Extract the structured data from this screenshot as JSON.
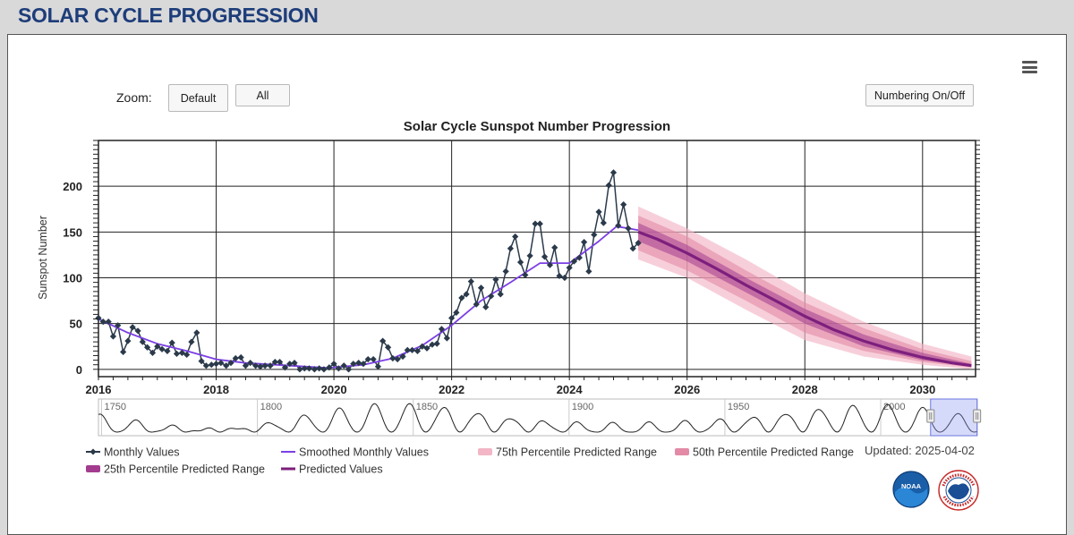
{
  "page": {
    "title": "SOLAR CYCLE PROGRESSION"
  },
  "toolbar": {
    "zoom_label": "Zoom:",
    "zoom_default_label": "Default",
    "zoom_all_label": "All",
    "numbering_label": "Numbering On/Off",
    "menu_icon": "hamburger-menu-icon"
  },
  "updated": "Updated: 2025-04-02",
  "logos": [
    "noaa-logo",
    "national-weather-service-logo"
  ],
  "colors": {
    "monthly": "#2b3a4a",
    "smoothed": "#7b3fe4",
    "predicted": "#7d1f7d",
    "p25": "#a33c8f",
    "p50": "#e38aa6",
    "p75": "#f2b6c6",
    "title_blue": "#1d3d7a"
  },
  "chart_data": {
    "type": "line",
    "title": "Solar Cycle Sunspot Number Progression",
    "xlabel": "",
    "ylabel": "Sunspot Number",
    "xlim": [
      2016,
      2030.9
    ],
    "ylim": [
      -8,
      250
    ],
    "x_ticks": [
      "2016",
      "2018",
      "2020",
      "2022",
      "2024",
      "2026",
      "2028",
      "2030"
    ],
    "y_ticks": [
      "0",
      "50",
      "100",
      "150",
      "200"
    ],
    "grid": true,
    "series": [
      {
        "name": "Monthly Values",
        "x": [
          2016.0,
          2016.08,
          2016.17,
          2016.25,
          2016.33,
          2016.42,
          2016.5,
          2016.58,
          2016.67,
          2016.75,
          2016.83,
          2016.92,
          2017.0,
          2017.08,
          2017.17,
          2017.25,
          2017.33,
          2017.42,
          2017.5,
          2017.58,
          2017.67,
          2017.75,
          2017.83,
          2017.92,
          2018.0,
          2018.08,
          2018.17,
          2018.25,
          2018.33,
          2018.42,
          2018.5,
          2018.58,
          2018.67,
          2018.75,
          2018.83,
          2018.92,
          2019.0,
          2019.08,
          2019.17,
          2019.25,
          2019.33,
          2019.42,
          2019.5,
          2019.58,
          2019.67,
          2019.75,
          2019.83,
          2019.92,
          2020.0,
          2020.08,
          2020.17,
          2020.25,
          2020.33,
          2020.42,
          2020.5,
          2020.58,
          2020.67,
          2020.75,
          2020.83,
          2020.92,
          2021.0,
          2021.08,
          2021.17,
          2021.25,
          2021.33,
          2021.42,
          2021.5,
          2021.58,
          2021.67,
          2021.75,
          2021.83,
          2021.92,
          2022.0,
          2022.08,
          2022.17,
          2022.25,
          2022.33,
          2022.42,
          2022.5,
          2022.58,
          2022.67,
          2022.75,
          2022.83,
          2022.92,
          2023.0,
          2023.08,
          2023.17,
          2023.25,
          2023.33,
          2023.42,
          2023.5,
          2023.58,
          2023.67,
          2023.75,
          2023.83,
          2023.92,
          2024.0,
          2024.08,
          2024.17,
          2024.25,
          2024.33,
          2024.42,
          2024.5,
          2024.58,
          2024.67,
          2024.75,
          2024.83,
          2024.92,
          2025.0,
          2025.08,
          2025.17
        ],
        "values": [
          56,
          52,
          52,
          36,
          48,
          19,
          31,
          46,
          42,
          30,
          24,
          18,
          25,
          22,
          20,
          29,
          17,
          18,
          16,
          30,
          40,
          9,
          4,
          5,
          6,
          7,
          4,
          7,
          12,
          13,
          4,
          7,
          4,
          3,
          4,
          4,
          8,
          8,
          2,
          6,
          7,
          0,
          1,
          1,
          0,
          1,
          0,
          2,
          6,
          1,
          4,
          0,
          6,
          7,
          6,
          11,
          11,
          3,
          31,
          24,
          12,
          11,
          14,
          21,
          21,
          20,
          25,
          23,
          27,
          28,
          44,
          34,
          56,
          62,
          78,
          82,
          96,
          71,
          89,
          68,
          80,
          98,
          82,
          107,
          132,
          145,
          117,
          103,
          124,
          159,
          159,
          123,
          114,
          133,
          102,
          100,
          111,
          118,
          122,
          139,
          107,
          147,
          172,
          160,
          201,
          215,
          157,
          180,
          154,
          132,
          138
        ]
      },
      {
        "name": "Smoothed Monthly Values",
        "x": [
          2016.0,
          2016.5,
          2017.0,
          2017.5,
          2018.0,
          2018.5,
          2019.0,
          2019.5,
          2019.9,
          2020.5,
          2021.0,
          2021.5,
          2022.0,
          2022.5,
          2023.0,
          2023.5,
          2024.0,
          2024.5,
          2024.8,
          2025.0,
          2025.17
        ],
        "values": [
          55,
          40,
          28,
          20,
          11,
          7,
          5,
          3,
          1.5,
          5,
          12,
          26,
          48,
          75,
          95,
          116,
          116,
          140,
          156,
          154,
          152
        ]
      },
      {
        "name": "Predicted Values",
        "x": [
          2025.17,
          2025.5,
          2026.0,
          2026.5,
          2027.0,
          2027.5,
          2028.0,
          2028.5,
          2029.0,
          2029.5,
          2030.0,
          2030.5,
          2030.83
        ],
        "values": [
          150,
          142,
          127,
          110,
          92,
          75,
          58,
          43,
          31,
          21,
          13,
          7,
          4
        ]
      }
    ],
    "bands": [
      {
        "name": "75th Percentile Predicted Range",
        "x": [
          2025.17,
          2026.0,
          2027.0,
          2028.0,
          2029.0,
          2030.0,
          2030.83
        ],
        "low": [
          120,
          100,
          65,
          32,
          14,
          5,
          0
        ],
        "high": [
          178,
          154,
          120,
          83,
          52,
          28,
          14
        ]
      },
      {
        "name": "50th Percentile Predicted Range",
        "x": [
          2025.17,
          2026.0,
          2027.0,
          2028.0,
          2029.0,
          2030.0,
          2030.83
        ],
        "low": [
          130,
          108,
          75,
          40,
          20,
          8,
          2
        ],
        "high": [
          168,
          145,
          108,
          73,
          45,
          22,
          9
        ]
      },
      {
        "name": "25th Percentile Predicted Range",
        "x": [
          2025.17,
          2026.0,
          2027.0,
          2028.0,
          2029.0,
          2030.0,
          2030.83
        ],
        "low": [
          140,
          118,
          84,
          50,
          25,
          10,
          3
        ],
        "high": [
          160,
          136,
          100,
          66,
          38,
          18,
          6
        ]
      }
    ],
    "legend": {
      "placement": "bottom",
      "items": [
        {
          "label": "Monthly Values",
          "kind": "line-marker",
          "color": "#2b3a4a"
        },
        {
          "label": "Smoothed Monthly Values",
          "kind": "line",
          "color": "#7b3fe4"
        },
        {
          "label": "75th Percentile Predicted Range",
          "kind": "band",
          "color": "#f2b6c6"
        },
        {
          "label": "50th Percentile Predicted Range",
          "kind": "band",
          "color": "#e38aa6"
        },
        {
          "label": "25th Percentile Predicted Range",
          "kind": "band",
          "color": "#a33c8f"
        },
        {
          "label": "Predicted Values",
          "kind": "line",
          "color": "#7d1f7d"
        }
      ]
    },
    "navigator": {
      "labels": [
        "1750",
        "1800",
        "1850",
        "1900",
        "1950",
        "2000"
      ],
      "range": [
        1749,
        2031
      ],
      "selected": [
        2016,
        2030.9
      ]
    }
  }
}
